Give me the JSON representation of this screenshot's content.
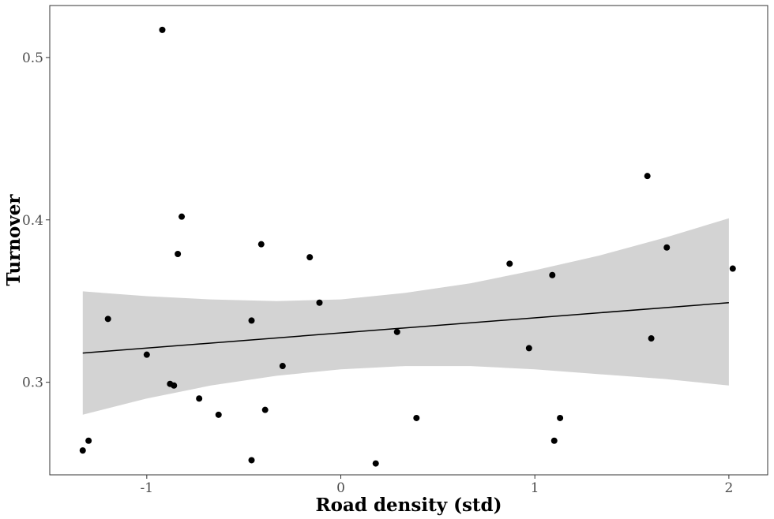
{
  "chart_data": {
    "type": "scatter",
    "title": "",
    "xlabel": "Road density (std)",
    "ylabel": "Turnover",
    "xlim": [
      -1.5,
      2.2
    ],
    "ylim": [
      0.243,
      0.532
    ],
    "xticks": [
      -1,
      0,
      1,
      2
    ],
    "xtick_labels": [
      "-1",
      "0",
      "1",
      "2"
    ],
    "yticks": [
      0.3,
      0.4,
      0.5
    ],
    "ytick_labels": [
      "0.3",
      "0.4",
      "0.5"
    ],
    "grid": false,
    "legend": "none",
    "points": [
      {
        "x": -1.33,
        "y": 0.258
      },
      {
        "x": -1.3,
        "y": 0.264
      },
      {
        "x": -1.2,
        "y": 0.339
      },
      {
        "x": -0.92,
        "y": 0.517
      },
      {
        "x": -1.0,
        "y": 0.317
      },
      {
        "x": -0.88,
        "y": 0.299
      },
      {
        "x": -0.86,
        "y": 0.298
      },
      {
        "x": -0.84,
        "y": 0.379
      },
      {
        "x": -0.82,
        "y": 0.402
      },
      {
        "x": -0.73,
        "y": 0.29
      },
      {
        "x": -0.63,
        "y": 0.28
      },
      {
        "x": -0.46,
        "y": 0.338
      },
      {
        "x": -0.46,
        "y": 0.252
      },
      {
        "x": -0.41,
        "y": 0.385
      },
      {
        "x": -0.39,
        "y": 0.283
      },
      {
        "x": -0.3,
        "y": 0.31
      },
      {
        "x": -0.16,
        "y": 0.377
      },
      {
        "x": -0.11,
        "y": 0.349
      },
      {
        "x": 0.18,
        "y": 0.25
      },
      {
        "x": 0.29,
        "y": 0.331
      },
      {
        "x": 0.39,
        "y": 0.278
      },
      {
        "x": 0.87,
        "y": 0.373
      },
      {
        "x": 0.97,
        "y": 0.321
      },
      {
        "x": 1.09,
        "y": 0.366
      },
      {
        "x": 1.1,
        "y": 0.264
      },
      {
        "x": 1.13,
        "y": 0.278
      },
      {
        "x": 1.58,
        "y": 0.427
      },
      {
        "x": 1.6,
        "y": 0.327
      },
      {
        "x": 1.68,
        "y": 0.383
      },
      {
        "x": 2.02,
        "y": 0.37
      }
    ],
    "fit_line": {
      "x": [
        -1.33,
        2.0
      ],
      "y": [
        0.318,
        0.349
      ]
    },
    "confidence_band": {
      "x": [
        -1.33,
        -1.0,
        -0.67,
        -0.33,
        0.0,
        0.33,
        0.67,
        1.0,
        1.33,
        1.67,
        2.0
      ],
      "lower": [
        0.28,
        0.29,
        0.298,
        0.304,
        0.308,
        0.31,
        0.31,
        0.308,
        0.305,
        0.302,
        0.298
      ],
      "upper": [
        0.356,
        0.353,
        0.351,
        0.35,
        0.351,
        0.355,
        0.361,
        0.369,
        0.378,
        0.389,
        0.401
      ]
    },
    "colors": {
      "points": "#000000",
      "line": "#000000",
      "band": "#d3d3d3",
      "axis_text": "#4d4d4d"
    }
  }
}
